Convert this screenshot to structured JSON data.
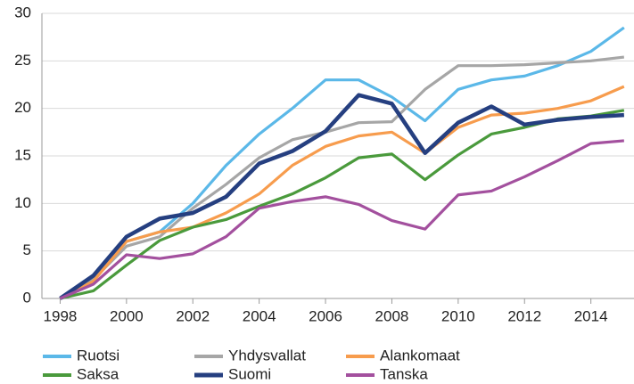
{
  "chart_data": {
    "type": "line",
    "x": [
      1998,
      1999,
      2000,
      2001,
      2002,
      2003,
      2004,
      2005,
      2006,
      2007,
      2008,
      2009,
      2010,
      2011,
      2012,
      2013,
      2014,
      2015
    ],
    "series": [
      {
        "name": "Ruotsi",
        "color": "#5bb8e8",
        "values": [
          0,
          2.0,
          6.0,
          7.0,
          10.0,
          14.0,
          17.3,
          20.0,
          23.0,
          23.0,
          21.2,
          18.7,
          22.0,
          23.0,
          23.4,
          24.5,
          26.0,
          28.5
        ]
      },
      {
        "name": "Yhdysvallat",
        "color": "#a6a6a6",
        "values": [
          0,
          2.0,
          5.5,
          6.5,
          9.5,
          12.0,
          14.8,
          16.7,
          17.5,
          18.5,
          18.6,
          22.0,
          24.5,
          24.5,
          24.6,
          24.8,
          25.0,
          25.4
        ]
      },
      {
        "name": "Alankomaat",
        "color": "#f79c4d",
        "values": [
          0,
          1.8,
          6.0,
          7.0,
          7.5,
          9.0,
          11.0,
          14.0,
          16.0,
          17.1,
          17.5,
          15.3,
          18.0,
          19.3,
          19.5,
          20.0,
          20.8,
          22.3
        ]
      },
      {
        "name": "Saksa",
        "color": "#4a9a3c",
        "values": [
          0,
          0.8,
          3.5,
          6.1,
          7.5,
          8.3,
          9.7,
          11.0,
          12.7,
          14.8,
          15.2,
          12.5,
          15.1,
          17.3,
          18.0,
          18.9,
          19.2,
          19.8
        ]
      },
      {
        "name": "Suomi",
        "color": "#253f80",
        "values": [
          0,
          2.4,
          6.5,
          8.4,
          9.0,
          10.7,
          14.2,
          15.5,
          17.6,
          21.4,
          20.5,
          15.3,
          18.5,
          20.2,
          18.3,
          18.8,
          19.1,
          19.3
        ]
      },
      {
        "name": "Tanska",
        "color": "#a3509e",
        "values": [
          0,
          1.5,
          4.6,
          4.2,
          4.7,
          6.5,
          9.5,
          10.2,
          10.7,
          9.9,
          8.2,
          7.3,
          10.9,
          11.3,
          12.8,
          14.5,
          16.3,
          16.6
        ]
      }
    ],
    "xlim": [
      1997.45,
      2015.3
    ],
    "xticks": [
      1998,
      2000,
      2002,
      2004,
      2006,
      2008,
      2010,
      2012,
      2014
    ],
    "ylim": [
      0,
      30
    ],
    "yticks": [
      0,
      5,
      10,
      15,
      20,
      25,
      30
    ],
    "grid": true
  }
}
